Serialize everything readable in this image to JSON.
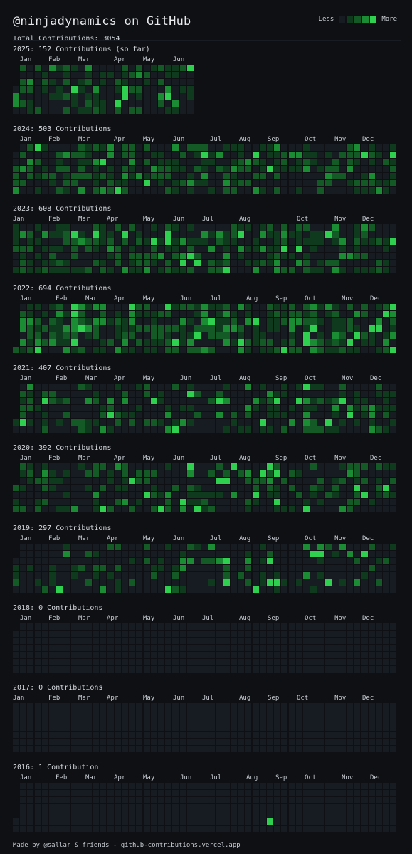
{
  "header": {
    "title": "@ninjadynamics on GitHub",
    "total": "Total Contributions: 3054",
    "legend_less": "Less",
    "legend_more": "More"
  },
  "colors": {
    "background": "#0e1014",
    "level0": "#171b22",
    "level1": "#0f3a1d",
    "level2": "#145a26",
    "level3": "#1c8c34",
    "level4": "#2fd050"
  },
  "years": [
    {
      "label": "2025: 152 Contributions (so far)",
      "months": [
        "Jan",
        "Feb",
        "Mar",
        "Apr",
        "May",
        "Jun"
      ]
    },
    {
      "label": "2024: 503 Contributions",
      "months": [
        "Jan",
        "Feb",
        "Mar",
        "Apr",
        "May",
        "Jun",
        "Jul",
        "Aug",
        "Sep",
        "Oct",
        "Nov",
        "Dec"
      ]
    },
    {
      "label": "2023: 608 Contributions",
      "months": [
        "Jan",
        "Feb",
        "Mar",
        "Apr",
        "May",
        "Jun",
        "Jul",
        "Aug",
        "Oct",
        "Nov",
        "Dec"
      ]
    },
    {
      "label": "2022: 694 Contributions",
      "months": [
        "Jan",
        "Feb",
        "Mar",
        "Apr",
        "May",
        "Jun",
        "Jul",
        "Aug",
        "Sep",
        "Oct",
        "Nov",
        "Dec"
      ]
    },
    {
      "label": "2021: 407 Contributions",
      "months": [
        "Jan",
        "Feb",
        "Mar",
        "Apr",
        "May",
        "Jun",
        "Jul",
        "Aug",
        "Sep",
        "Oct",
        "Nov",
        "Dec"
      ]
    },
    {
      "label": "2020: 392 Contributions",
      "months": [
        "Jan",
        "Feb",
        "Mar",
        "Apr",
        "May",
        "Jun",
        "Jul",
        "Aug",
        "Sep",
        "Oct",
        "Nov",
        "Dec"
      ]
    },
    {
      "label": "2019: 297 Contributions",
      "months": [
        "Jan",
        "Feb",
        "Mar",
        "Apr",
        "May",
        "Jun",
        "Jul",
        "Aug",
        "Sep",
        "Oct",
        "Nov",
        "Dec"
      ]
    },
    {
      "label": "2018: 0 Contributions",
      "months": [
        "Jan",
        "Feb",
        "Mar",
        "Apr",
        "May",
        "Jun",
        "Jul",
        "Aug",
        "Sep",
        "Oct",
        "Nov",
        "Dec"
      ]
    },
    {
      "label": "2017: 0 Contributions",
      "months": [
        "Jan",
        "Feb",
        "Mar",
        "Apr",
        "May",
        "Jun",
        "Jul",
        "Aug",
        "Sep",
        "Oct",
        "Nov",
        "Dec"
      ]
    },
    {
      "label": "2016: 1 Contribution",
      "months": [
        "Jan",
        "Feb",
        "Mar",
        "Apr",
        "May",
        "Jun",
        "Jul",
        "Aug",
        "Sep",
        "Oct",
        "Nov",
        "Dec"
      ]
    }
  ],
  "footer": "Made by @sallar & friends - github-contributions.vercel.app"
}
